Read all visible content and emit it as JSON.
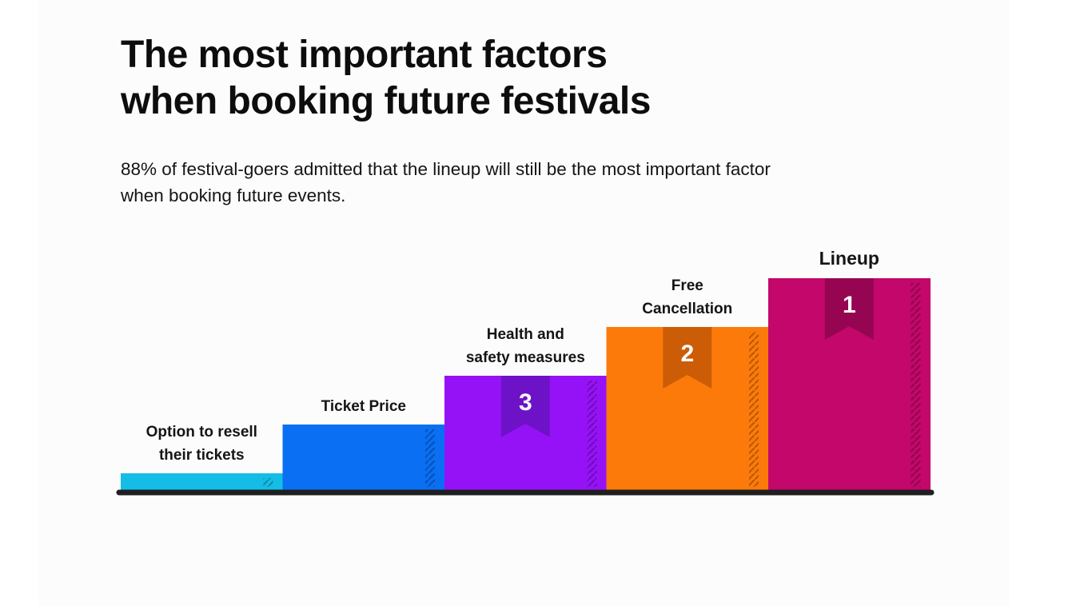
{
  "title": "The most important factors\nwhen booking future festivals",
  "subtitle": "88% of festival-goers admitted that the lineup will still be the most important factor when booking future events.",
  "chart_data": {
    "type": "bar",
    "title": "",
    "xlabel": "",
    "ylabel": "",
    "categories": [
      "Option to resell their tickets",
      "Ticket Price",
      "Health and safety measures",
      "Free Cancellation",
      "Lineup"
    ],
    "label_lines": [
      [
        "Option to resell",
        "their tickets"
      ],
      [
        "Ticket Price"
      ],
      [
        "Health and",
        "safety measures"
      ],
      [
        "Free",
        "Cancellation"
      ],
      [
        "Lineup"
      ]
    ],
    "values": [
      1,
      2,
      3,
      4,
      5
    ],
    "ranks": [
      "",
      "",
      "3",
      "2",
      "1"
    ],
    "colors": [
      "#14bde6",
      "#0a6ff3",
      "#9512f7",
      "#fc7a0a",
      "#c3076b"
    ],
    "ribbon_colors": [
      "",
      "",
      "#6e12c7",
      "#cc5c05",
      "#960551"
    ],
    "grid": false,
    "legend": "none"
  }
}
